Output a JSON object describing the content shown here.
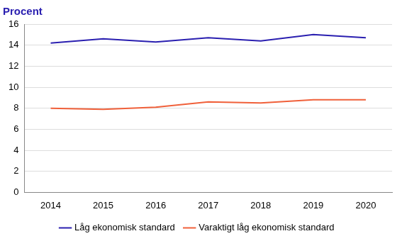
{
  "chart_data": {
    "type": "line",
    "ylabel": "Procent",
    "categories": [
      "2014",
      "2015",
      "2016",
      "2017",
      "2018",
      "2019",
      "2020"
    ],
    "series": [
      {
        "name": "Låg ekonomisk standard",
        "color": "#2a1fb0",
        "values": [
          14.2,
          14.6,
          14.3,
          14.7,
          14.4,
          15.0,
          14.7
        ]
      },
      {
        "name": "Varaktigt låg ekonomisk standard",
        "color": "#f0603a",
        "values": [
          8.0,
          7.9,
          8.1,
          8.6,
          8.5,
          8.8,
          8.8
        ]
      }
    ],
    "ylim": [
      0,
      16
    ],
    "yticks": [
      0,
      2,
      4,
      6,
      8,
      10,
      12,
      14,
      16
    ],
    "grid": true,
    "legend": "bottom"
  }
}
